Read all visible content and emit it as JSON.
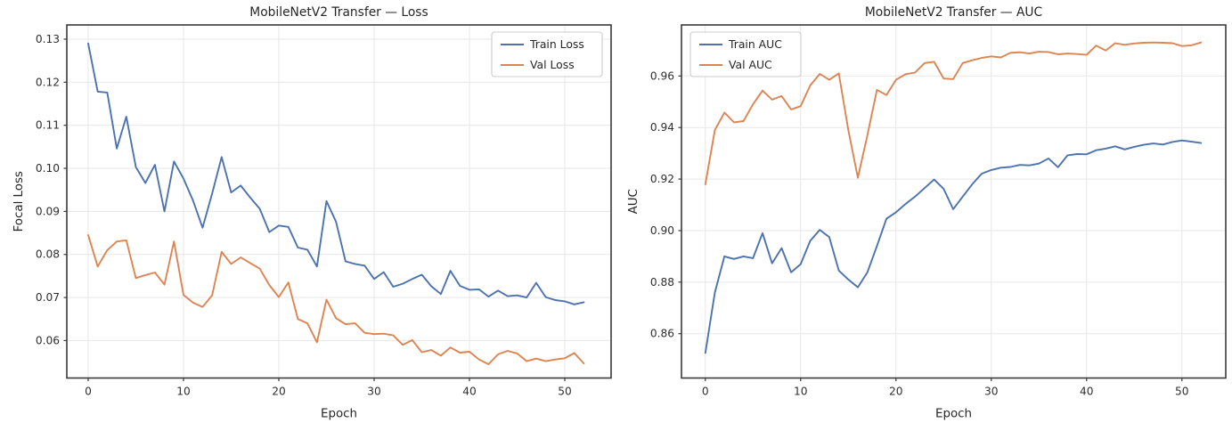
{
  "figure": {
    "background": "#ffffff",
    "description_colors": {
      "train_series": "#4C72B0",
      "val_series": "#DD8452",
      "grid": "#e7e7e7",
      "spine": "#3a3a3a",
      "text": "#262626",
      "tick_text": "#2e2e2e",
      "legend_border": "#cccccc",
      "legend_bg": "#ffffff"
    }
  },
  "chart_data": [
    {
      "type": "line",
      "title": "MobileNetV2 Transfer — Loss",
      "xlabel": "Epoch",
      "ylabel": "Focal Loss",
      "xlim": [
        -2.24,
        54.86
      ],
      "ylim": [
        0.0513,
        0.1333
      ],
      "xticks": [
        0,
        10,
        20,
        30,
        40,
        50
      ],
      "yticks": [
        0.06,
        0.07,
        0.08,
        0.09,
        0.1,
        0.11,
        0.12,
        0.13
      ],
      "grid": true,
      "legend_position": "top-right",
      "x": [
        0,
        1,
        2,
        3,
        4,
        5,
        6,
        7,
        8,
        9,
        10,
        11,
        12,
        13,
        14,
        15,
        16,
        17,
        18,
        19,
        20,
        21,
        22,
        23,
        24,
        25,
        26,
        27,
        28,
        29,
        30,
        31,
        32,
        33,
        34,
        35,
        36,
        37,
        38,
        39,
        40,
        41,
        42,
        43,
        44,
        45,
        46,
        47,
        48,
        49,
        50,
        51,
        52
      ],
      "series": [
        {
          "name": "Train Loss",
          "color_key": "train_series",
          "values": [
            0.129,
            0.1178,
            0.1176,
            0.1046,
            0.112,
            0.1003,
            0.0966,
            0.1008,
            0.09,
            0.1016,
            0.0976,
            0.0925,
            0.0862,
            0.0941,
            0.1026,
            0.0944,
            0.096,
            0.0932,
            0.0906,
            0.0852,
            0.0867,
            0.0864,
            0.0816,
            0.0811,
            0.0772,
            0.0924,
            0.0876,
            0.0784,
            0.0778,
            0.0774,
            0.0743,
            0.0759,
            0.0725,
            0.0732,
            0.0743,
            0.0753,
            0.0726,
            0.0708,
            0.0762,
            0.0727,
            0.0718,
            0.0719,
            0.0702,
            0.0716,
            0.0703,
            0.0705,
            0.07,
            0.0734,
            0.0701,
            0.0694,
            0.0691,
            0.0684,
            0.0689
          ]
        },
        {
          "name": "Val Loss",
          "color_key": "val_series",
          "values": [
            0.0845,
            0.0772,
            0.081,
            0.083,
            0.0833,
            0.0745,
            0.0752,
            0.0758,
            0.073,
            0.083,
            0.0706,
            0.0688,
            0.0678,
            0.0705,
            0.0806,
            0.0778,
            0.0793,
            0.078,
            0.0767,
            0.0729,
            0.0701,
            0.0735,
            0.065,
            0.064,
            0.0596,
            0.0695,
            0.0652,
            0.0638,
            0.064,
            0.0618,
            0.0615,
            0.0616,
            0.0612,
            0.059,
            0.0601,
            0.0573,
            0.0578,
            0.0565,
            0.0584,
            0.0572,
            0.0574,
            0.0556,
            0.0545,
            0.0568,
            0.0576,
            0.057,
            0.0552,
            0.0558,
            0.0552,
            0.0556,
            0.0559,
            0.0571,
            0.0547
          ]
        }
      ]
    },
    {
      "type": "line",
      "title": "MobileNetV2 Transfer — AUC",
      "xlabel": "Epoch",
      "ylabel": "AUC",
      "xlim": [
        -2.5,
        54.6
      ],
      "ylim": [
        0.8428,
        0.9798
      ],
      "xticks": [
        0,
        10,
        20,
        30,
        40,
        50
      ],
      "yticks": [
        0.86,
        0.88,
        0.9,
        0.92,
        0.94,
        0.96
      ],
      "grid": true,
      "legend_position": "top-left",
      "x": [
        0,
        1,
        2,
        3,
        4,
        5,
        6,
        7,
        8,
        9,
        10,
        11,
        12,
        13,
        14,
        15,
        16,
        17,
        18,
        19,
        20,
        21,
        22,
        23,
        24,
        25,
        26,
        27,
        28,
        29,
        30,
        31,
        32,
        33,
        34,
        35,
        36,
        37,
        38,
        39,
        40,
        41,
        42,
        43,
        44,
        45,
        46,
        47,
        48,
        49,
        50,
        51,
        52
      ],
      "series": [
        {
          "name": "Train AUC",
          "color_key": "train_series",
          "values": [
            0.8525,
            0.876,
            0.89,
            0.889,
            0.89,
            0.8893,
            0.899,
            0.8873,
            0.8932,
            0.8838,
            0.887,
            0.896,
            0.9003,
            0.8975,
            0.8845,
            0.881,
            0.878,
            0.8838,
            0.894,
            0.9046,
            0.9071,
            0.9103,
            0.9132,
            0.9165,
            0.9198,
            0.9162,
            0.9083,
            0.9132,
            0.918,
            0.9221,
            0.9235,
            0.9244,
            0.9247,
            0.9255,
            0.9253,
            0.926,
            0.928,
            0.9246,
            0.9292,
            0.9297,
            0.9296,
            0.9312,
            0.9318,
            0.9327,
            0.9315,
            0.9325,
            0.9333,
            0.9338,
            0.9334,
            0.9344,
            0.935,
            0.9345,
            0.934
          ]
        },
        {
          "name": "Val AUC",
          "color_key": "val_series",
          "values": [
            0.918,
            0.939,
            0.9458,
            0.942,
            0.9425,
            0.949,
            0.9543,
            0.9508,
            0.9522,
            0.947,
            0.9483,
            0.9563,
            0.9608,
            0.9585,
            0.961,
            0.939,
            0.9205,
            0.937,
            0.9546,
            0.9526,
            0.9585,
            0.9607,
            0.9613,
            0.965,
            0.9655,
            0.959,
            0.9588,
            0.965,
            0.9661,
            0.967,
            0.9676,
            0.9672,
            0.969,
            0.9692,
            0.9687,
            0.9694,
            0.9693,
            0.9684,
            0.9687,
            0.9685,
            0.9682,
            0.9718,
            0.9699,
            0.9727,
            0.9721,
            0.9726,
            0.9729,
            0.973,
            0.9729,
            0.9727,
            0.9716,
            0.9719,
            0.973
          ]
        }
      ]
    }
  ]
}
